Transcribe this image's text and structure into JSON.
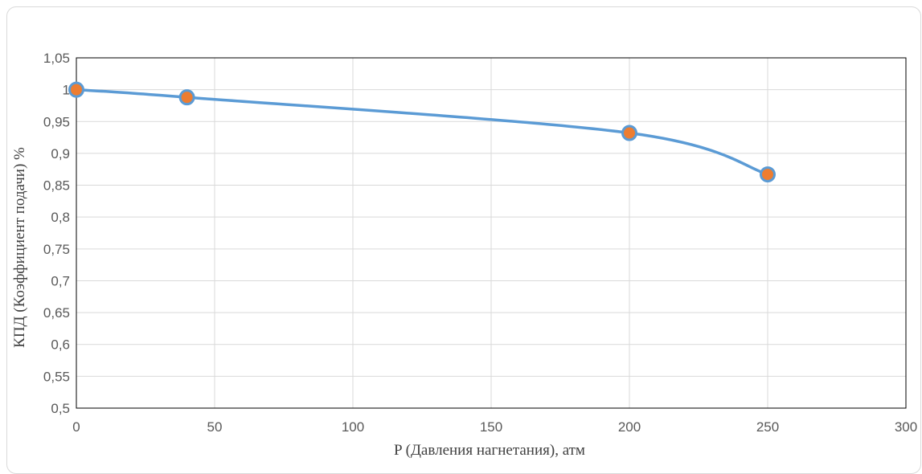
{
  "chart_data": {
    "type": "line",
    "title": "",
    "xlabel": "P (Давления нагнетания), атм",
    "ylabel": "КПД (Коэффициент подачи) %",
    "xlim": [
      0,
      300
    ],
    "ylim": [
      0.5,
      1.05
    ],
    "x_ticks": [
      "0",
      "50",
      "100",
      "150",
      "200",
      "250",
      "300"
    ],
    "x_tick_values": [
      0,
      50,
      100,
      150,
      200,
      250,
      300
    ],
    "y_ticks": [
      "0,5",
      "0,55",
      "0,6",
      "0,65",
      "0,7",
      "0,75",
      "0,8",
      "0,85",
      "0,9",
      "0,95",
      "1",
      "1,05"
    ],
    "y_tick_values": [
      0.5,
      0.55,
      0.6,
      0.65,
      0.7,
      0.75,
      0.8,
      0.85,
      0.9,
      0.95,
      1.0,
      1.05
    ],
    "grid": true,
    "legend": "none",
    "series": [
      {
        "x": [
          0,
          40,
          200,
          250
        ],
        "values": [
          1.0,
          0.988,
          0.932,
          0.867
        ],
        "line_color": "#5b9bd5",
        "marker_fill": "#ed7d31",
        "marker_edge": "#5b9bd5",
        "smooth": true
      }
    ]
  }
}
